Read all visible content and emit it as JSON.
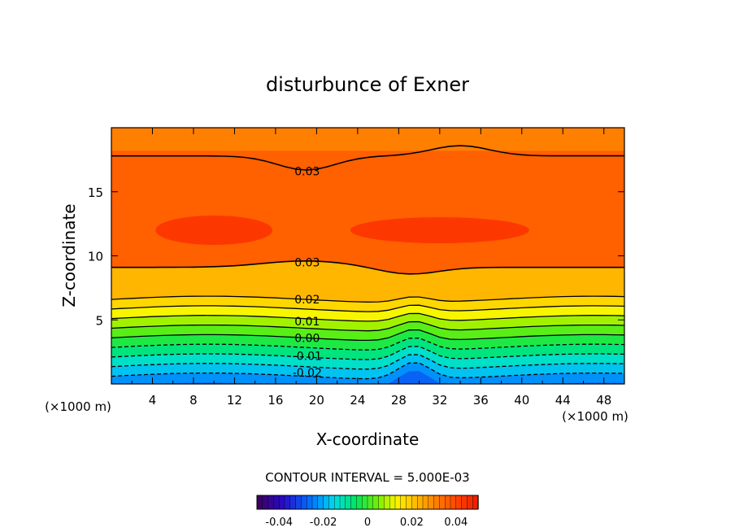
{
  "chart_data": {
    "type": "contour",
    "title": "disturbunce of Exner",
    "xlabel": "X-coordinate",
    "ylabel": "Z-coordinate",
    "x_unit": "(×1000 m)",
    "y_unit": "(×1000 m)",
    "xlim": [
      0,
      50
    ],
    "ylim": [
      0,
      20
    ],
    "x_ticks": [
      "4",
      "8",
      "12",
      "16",
      "20",
      "24",
      "28",
      "32",
      "36",
      "40",
      "44",
      "48"
    ],
    "y_ticks": [
      "5",
      "10",
      "15"
    ],
    "contour_interval_text": "CONTOUR INTERVAL = 5.000E-03",
    "contour_labels": [
      {
        "text": "0.03",
        "x": 17.5,
        "z": 16.6
      },
      {
        "text": "0.03",
        "x": 17.5,
        "z": 9.5
      },
      {
        "text": "0.02",
        "x": 17.5,
        "z": 6.6
      },
      {
        "text": "0.01",
        "x": 17.5,
        "z": 4.9
      },
      {
        "text": "0.00",
        "x": 17.5,
        "z": 3.6
      },
      {
        "text": "-0.01",
        "x": 17.5,
        "z": 2.2
      },
      {
        "text": "-0.02",
        "x": 17.5,
        "z": 0.9
      }
    ],
    "colorbar": {
      "min": -0.05,
      "max": 0.05,
      "tick_labels": [
        "-0.04",
        "-0.02",
        "0",
        "0.02",
        "0.04"
      ],
      "tick_values": [
        -0.04,
        -0.02,
        0,
        0.02,
        0.04
      ]
    }
  }
}
